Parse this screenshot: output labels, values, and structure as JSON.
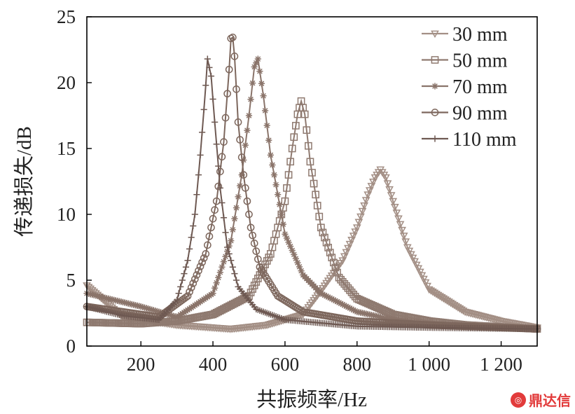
{
  "chart_data": {
    "type": "line",
    "title": "",
    "xlabel": "共振频率/Hz",
    "ylabel": "传递损失/dB",
    "xlim": [
      50,
      1300
    ],
    "ylim": [
      0,
      25
    ],
    "x_ticks": [
      200,
      400,
      600,
      800,
      1000,
      1200
    ],
    "x_tick_labels": [
      "200",
      "400",
      "600",
      "800",
      "1 000",
      "1 200"
    ],
    "y_ticks": [
      0,
      5,
      10,
      15,
      20,
      25
    ],
    "y_tick_labels": [
      "0",
      "5",
      "10",
      "15",
      "20",
      "25"
    ],
    "legend_position": "top-right",
    "series": [
      {
        "name": "30 mm",
        "marker": "triangle-down",
        "color": "#a38f85",
        "x": [
          50,
          150,
          300,
          450,
          550,
          650,
          700,
          760,
          800,
          830,
          850,
          865,
          880,
          900,
          940,
          1000,
          1100,
          1200,
          1300
        ],
        "y": [
          4.6,
          2.2,
          1.6,
          1.3,
          1.6,
          2.4,
          4.2,
          6.5,
          9.0,
          11.5,
          12.8,
          13.4,
          12.8,
          11.0,
          7.5,
          4.3,
          2.6,
          1.9,
          1.4
        ]
      },
      {
        "name": "50 mm",
        "marker": "square",
        "color": "#8f7a70",
        "x": [
          50,
          200,
          300,
          400,
          500,
          560,
          600,
          620,
          635,
          645,
          655,
          670,
          700,
          750,
          800,
          900,
          1000,
          1100,
          1300
        ],
        "y": [
          1.8,
          1.7,
          1.9,
          2.4,
          3.8,
          7.0,
          11.0,
          15.0,
          17.6,
          18.6,
          17.6,
          14.0,
          9.0,
          5.2,
          3.6,
          2.4,
          1.9,
          1.6,
          1.3
        ]
      },
      {
        "name": "70 mm",
        "marker": "asterisk",
        "color": "#8a746a",
        "x": [
          50,
          200,
          300,
          400,
          450,
          480,
          500,
          515,
          525,
          540,
          560,
          600,
          650,
          700,
          800,
          900,
          1000,
          1100,
          1300
        ],
        "y": [
          4.0,
          3.0,
          2.2,
          4.0,
          8.0,
          13.0,
          17.5,
          21.2,
          21.8,
          19.0,
          14.5,
          8.5,
          5.4,
          4.0,
          2.6,
          2.0,
          1.7,
          1.5,
          1.3
        ]
      },
      {
        "name": "90 mm",
        "marker": "circle",
        "color": "#7d675d",
        "x": [
          50,
          150,
          250,
          330,
          380,
          410,
          430,
          445,
          452,
          460,
          470,
          485,
          505,
          530,
          580,
          650,
          800,
          1000,
          1300
        ],
        "y": [
          3.0,
          2.6,
          2.2,
          3.8,
          7.0,
          11.0,
          15.5,
          21.0,
          24.3,
          22.0,
          17.0,
          13.0,
          9.0,
          6.0,
          3.8,
          2.6,
          1.9,
          1.6,
          1.3
        ]
      },
      {
        "name": "110 mm",
        "marker": "plus",
        "color": "#6e5952",
        "x": [
          50,
          150,
          250,
          300,
          330,
          350,
          365,
          378,
          385,
          395,
          405,
          420,
          440,
          470,
          520,
          600,
          800,
          1000,
          1300
        ],
        "y": [
          3.0,
          2.3,
          2.0,
          3.5,
          6.5,
          10.0,
          14.5,
          19.0,
          21.8,
          20.5,
          17.0,
          12.0,
          7.5,
          4.5,
          2.8,
          2.0,
          1.5,
          1.4,
          1.3
        ]
      }
    ]
  },
  "watermark": {
    "icon": "logo-icon",
    "text": "鼎达信"
  }
}
